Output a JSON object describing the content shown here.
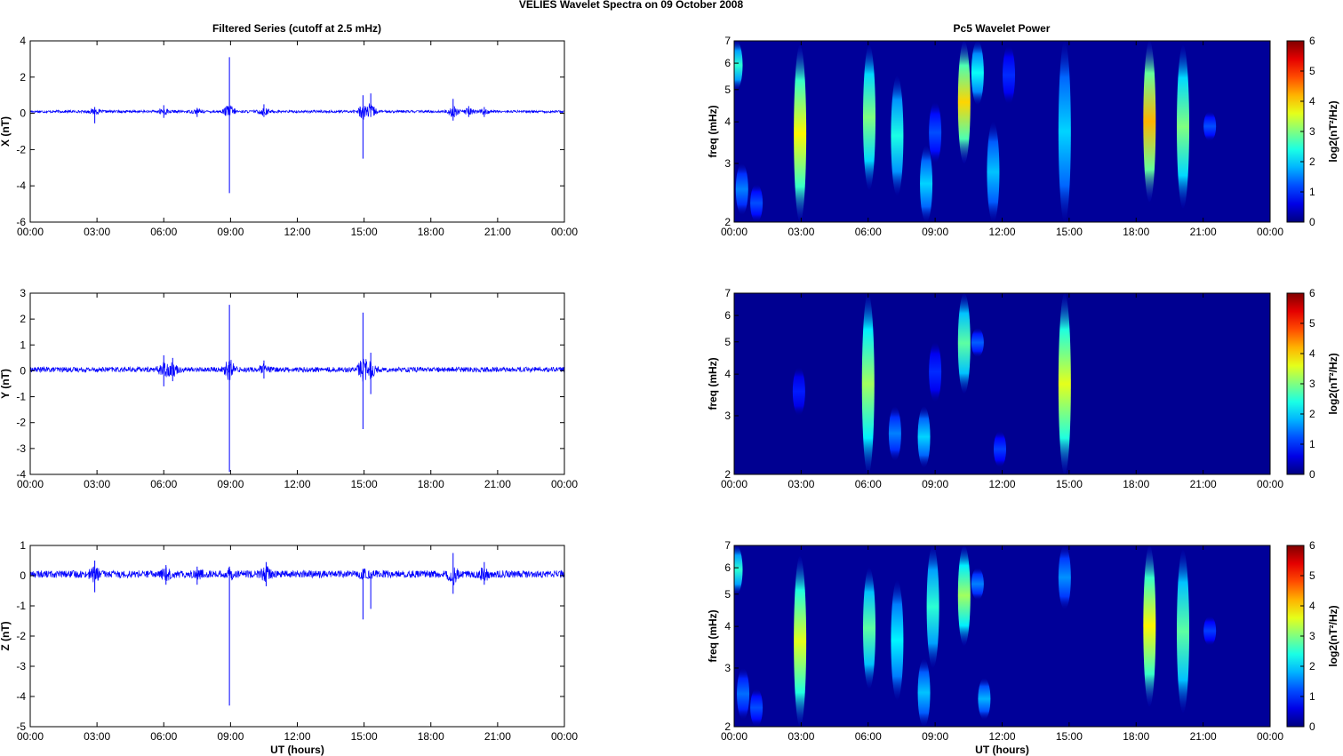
{
  "figure": {
    "suptitle": "VELIES Wavelet Spectra on 09 October   2008",
    "left_title": "Filtered Series (cutoff at 2.5 mHz)",
    "right_title": "Pc5 Wavelet Power"
  },
  "chart_data": [
    {
      "type": "line",
      "id": "x",
      "ylabel": "X (nT)",
      "xlabel": "",
      "ylim": [
        -6,
        4
      ],
      "yticks": [
        -6,
        -4,
        -2,
        0,
        2,
        4
      ],
      "xlim": [
        0,
        24
      ],
      "xticks": [
        "00:00",
        "03:00",
        "06:00",
        "09:00",
        "12:00",
        "15:00",
        "18:00",
        "21:00",
        "00:00"
      ],
      "color": "#0000ff",
      "baseline": 0.1,
      "noise_amplitude": 0.07,
      "events": [
        {
          "t": 2.9,
          "min": -0.55,
          "max": 0.35
        },
        {
          "t": 6.0,
          "min": -0.25,
          "max": 0.45
        },
        {
          "t": 7.5,
          "min": -0.2,
          "max": 0.3
        },
        {
          "t": 8.95,
          "min": -4.4,
          "max": 3.1
        },
        {
          "t": 10.5,
          "min": -0.2,
          "max": 0.5
        },
        {
          "t": 14.95,
          "min": -2.5,
          "max": 1.0
        },
        {
          "t": 15.3,
          "min": -0.2,
          "max": 1.1
        },
        {
          "t": 19.0,
          "min": -0.4,
          "max": 0.8
        },
        {
          "t": 19.7,
          "min": -0.2,
          "max": 0.4
        },
        {
          "t": 20.4,
          "min": -0.2,
          "max": 0.35
        }
      ]
    },
    {
      "type": "line",
      "id": "y",
      "ylabel": "Y (nT)",
      "xlabel": "",
      "ylim": [
        -4,
        3
      ],
      "yticks": [
        -4,
        -3,
        -2,
        -1,
        0,
        1,
        2,
        3
      ],
      "xlim": [
        0,
        24
      ],
      "xticks": [
        "00:00",
        "03:00",
        "06:00",
        "09:00",
        "12:00",
        "15:00",
        "18:00",
        "21:00",
        "00:00"
      ],
      "color": "#0000ff",
      "baseline": 0.05,
      "noise_amplitude": 0.1,
      "events": [
        {
          "t": 6.0,
          "min": -0.6,
          "max": 0.6
        },
        {
          "t": 6.4,
          "min": -0.4,
          "max": 0.5
        },
        {
          "t": 8.95,
          "min": -3.9,
          "max": 2.55
        },
        {
          "t": 10.5,
          "min": -0.3,
          "max": 0.4
        },
        {
          "t": 14.95,
          "min": -2.25,
          "max": 2.25
        },
        {
          "t": 15.3,
          "min": -0.9,
          "max": 0.7
        }
      ]
    },
    {
      "type": "line",
      "id": "z",
      "ylabel": "Z (nT)",
      "xlabel": "UT (hours)",
      "ylim": [
        -5,
        1
      ],
      "yticks": [
        -5,
        -4,
        -3,
        -2,
        -1,
        0,
        1
      ],
      "xlim": [
        0,
        24
      ],
      "xticks": [
        "00:00",
        "03:00",
        "06:00",
        "09:00",
        "12:00",
        "15:00",
        "18:00",
        "21:00",
        "00:00"
      ],
      "color": "#0000ff",
      "baseline": 0.05,
      "noise_amplitude": 0.12,
      "events": [
        {
          "t": 2.9,
          "min": -0.55,
          "max": 0.5
        },
        {
          "t": 6.1,
          "min": -0.3,
          "max": 0.35
        },
        {
          "t": 7.5,
          "min": -0.3,
          "max": 0.3
        },
        {
          "t": 8.95,
          "min": -4.3,
          "max": 0.3
        },
        {
          "t": 10.6,
          "min": -0.35,
          "max": 0.45
        },
        {
          "t": 14.95,
          "min": -1.45,
          "max": 0.2
        },
        {
          "t": 15.3,
          "min": -1.1,
          "max": 0.1
        },
        {
          "t": 19.0,
          "min": -0.6,
          "max": 0.75
        },
        {
          "t": 20.4,
          "min": -0.3,
          "max": 0.45
        }
      ]
    },
    {
      "type": "heatmap",
      "id": "x-spec",
      "ylabel": "freq (mHz)",
      "xlabel": "",
      "yscale": "log",
      "ylim": [
        2,
        7
      ],
      "yticks": [
        2,
        3,
        4,
        5,
        6,
        7
      ],
      "xlim": [
        0,
        24
      ],
      "xticks": [
        "00:00",
        "03:00",
        "06:00",
        "09:00",
        "12:00",
        "15:00",
        "18:00",
        "21:00",
        "00:00"
      ],
      "colorbar": {
        "label": "log2(nT²/Hz)",
        "range": [
          0,
          6
        ],
        "ticks": [
          0,
          1,
          2,
          3,
          4,
          5,
          6
        ]
      },
      "colormap": "jet",
      "background_power": 0.15,
      "blobs": [
        {
          "t": 0.1,
          "f_lo": 5.0,
          "f_hi": 7.0,
          "power": 2.5
        },
        {
          "t": 0.35,
          "f_lo": 2.1,
          "f_hi": 3.0,
          "power": 1.5
        },
        {
          "t": 1.0,
          "f_lo": 2.0,
          "f_hi": 2.6,
          "power": 1.2
        },
        {
          "t": 2.95,
          "f_lo": 2.0,
          "f_hi": 6.8,
          "power": 3.8
        },
        {
          "t": 6.05,
          "f_lo": 2.5,
          "f_hi": 6.8,
          "power": 3.0
        },
        {
          "t": 7.3,
          "f_lo": 2.4,
          "f_hi": 5.5,
          "power": 2.4
        },
        {
          "t": 8.6,
          "f_lo": 2.0,
          "f_hi": 3.4,
          "power": 2.0
        },
        {
          "t": 9.0,
          "f_lo": 3.0,
          "f_hi": 4.6,
          "power": 1.2
        },
        {
          "t": 10.3,
          "f_lo": 3.0,
          "f_hi": 7.0,
          "power": 4.0
        },
        {
          "t": 10.9,
          "f_lo": 4.5,
          "f_hi": 7.0,
          "power": 2.3
        },
        {
          "t": 11.6,
          "f_lo": 2.0,
          "f_hi": 4.0,
          "power": 1.9
        },
        {
          "t": 12.3,
          "f_lo": 4.5,
          "f_hi": 6.8,
          "power": 1.0
        },
        {
          "t": 14.8,
          "f_lo": 2.0,
          "f_hi": 7.0,
          "power": 2.0
        },
        {
          "t": 18.6,
          "f_lo": 2.3,
          "f_hi": 7.0,
          "power": 4.2
        },
        {
          "t": 20.1,
          "f_lo": 2.2,
          "f_hi": 6.8,
          "power": 3.0
        },
        {
          "t": 21.3,
          "f_lo": 3.5,
          "f_hi": 4.3,
          "power": 1.2
        }
      ]
    },
    {
      "type": "heatmap",
      "id": "y-spec",
      "ylabel": "freq (mHz)",
      "xlabel": "",
      "yscale": "log",
      "ylim": [
        2,
        7
      ],
      "yticks": [
        2,
        3,
        4,
        5,
        6,
        7
      ],
      "xlim": [
        0,
        24
      ],
      "xticks": [
        "00:00",
        "03:00",
        "06:00",
        "09:00",
        "12:00",
        "15:00",
        "18:00",
        "21:00",
        "00:00"
      ],
      "colorbar": {
        "label": "log2(nT²/Hz)",
        "range": [
          0,
          6
        ],
        "ticks": [
          0,
          1,
          2,
          3,
          4,
          5,
          6
        ]
      },
      "colormap": "jet",
      "background_power": 0.1,
      "blobs": [
        {
          "t": 2.9,
          "f_lo": 3.0,
          "f_hi": 4.2,
          "power": 0.9
        },
        {
          "t": 6.0,
          "f_lo": 2.0,
          "f_hi": 7.0,
          "power": 3.2
        },
        {
          "t": 7.2,
          "f_lo": 2.2,
          "f_hi": 3.2,
          "power": 1.5
        },
        {
          "t": 8.5,
          "f_lo": 2.1,
          "f_hi": 3.2,
          "power": 2.0
        },
        {
          "t": 9.0,
          "f_lo": 3.3,
          "f_hi": 5.0,
          "power": 1.0
        },
        {
          "t": 10.3,
          "f_lo": 3.5,
          "f_hi": 7.0,
          "power": 2.8
        },
        {
          "t": 10.9,
          "f_lo": 4.5,
          "f_hi": 5.5,
          "power": 1.3
        },
        {
          "t": 11.9,
          "f_lo": 2.1,
          "f_hi": 2.7,
          "power": 1.1
        },
        {
          "t": 14.8,
          "f_lo": 2.0,
          "f_hi": 7.0,
          "power": 3.6
        }
      ]
    },
    {
      "type": "heatmap",
      "id": "z-spec",
      "ylabel": "freq (mHz)",
      "xlabel": "UT (hours)",
      "yscale": "log",
      "ylim": [
        2,
        7
      ],
      "yticks": [
        2,
        3,
        4,
        5,
        6,
        7
      ],
      "xlim": [
        0,
        24
      ],
      "xticks": [
        "00:00",
        "03:00",
        "06:00",
        "09:00",
        "12:00",
        "15:00",
        "18:00",
        "21:00",
        "00:00"
      ],
      "colorbar": {
        "label": "log2(nT²/Hz)",
        "range": [
          0,
          6
        ],
        "ticks": [
          0,
          1,
          2,
          3,
          4,
          5,
          6
        ]
      },
      "colormap": "jet",
      "background_power": 0.15,
      "blobs": [
        {
          "t": 0.1,
          "f_lo": 5.0,
          "f_hi": 7.0,
          "power": 2.5
        },
        {
          "t": 0.4,
          "f_lo": 2.1,
          "f_hi": 3.0,
          "power": 1.4
        },
        {
          "t": 1.0,
          "f_lo": 2.0,
          "f_hi": 2.6,
          "power": 1.2
        },
        {
          "t": 2.95,
          "f_lo": 2.0,
          "f_hi": 6.5,
          "power": 3.6
        },
        {
          "t": 6.05,
          "f_lo": 2.6,
          "f_hi": 6.0,
          "power": 2.8
        },
        {
          "t": 7.3,
          "f_lo": 2.4,
          "f_hi": 5.5,
          "power": 2.2
        },
        {
          "t": 8.5,
          "f_lo": 2.0,
          "f_hi": 3.2,
          "power": 1.9
        },
        {
          "t": 8.9,
          "f_lo": 3.0,
          "f_hi": 7.0,
          "power": 2.5
        },
        {
          "t": 10.3,
          "f_lo": 3.5,
          "f_hi": 7.0,
          "power": 3.2
        },
        {
          "t": 10.9,
          "f_lo": 4.8,
          "f_hi": 6.0,
          "power": 1.5
        },
        {
          "t": 11.2,
          "f_lo": 2.1,
          "f_hi": 2.8,
          "power": 1.8
        },
        {
          "t": 14.8,
          "f_lo": 4.5,
          "f_hi": 7.0,
          "power": 1.6
        },
        {
          "t": 18.6,
          "f_lo": 2.3,
          "f_hi": 7.0,
          "power": 3.8
        },
        {
          "t": 20.1,
          "f_lo": 2.2,
          "f_hi": 6.8,
          "power": 2.8
        },
        {
          "t": 21.3,
          "f_lo": 3.5,
          "f_hi": 4.3,
          "power": 1.1
        }
      ]
    }
  ]
}
